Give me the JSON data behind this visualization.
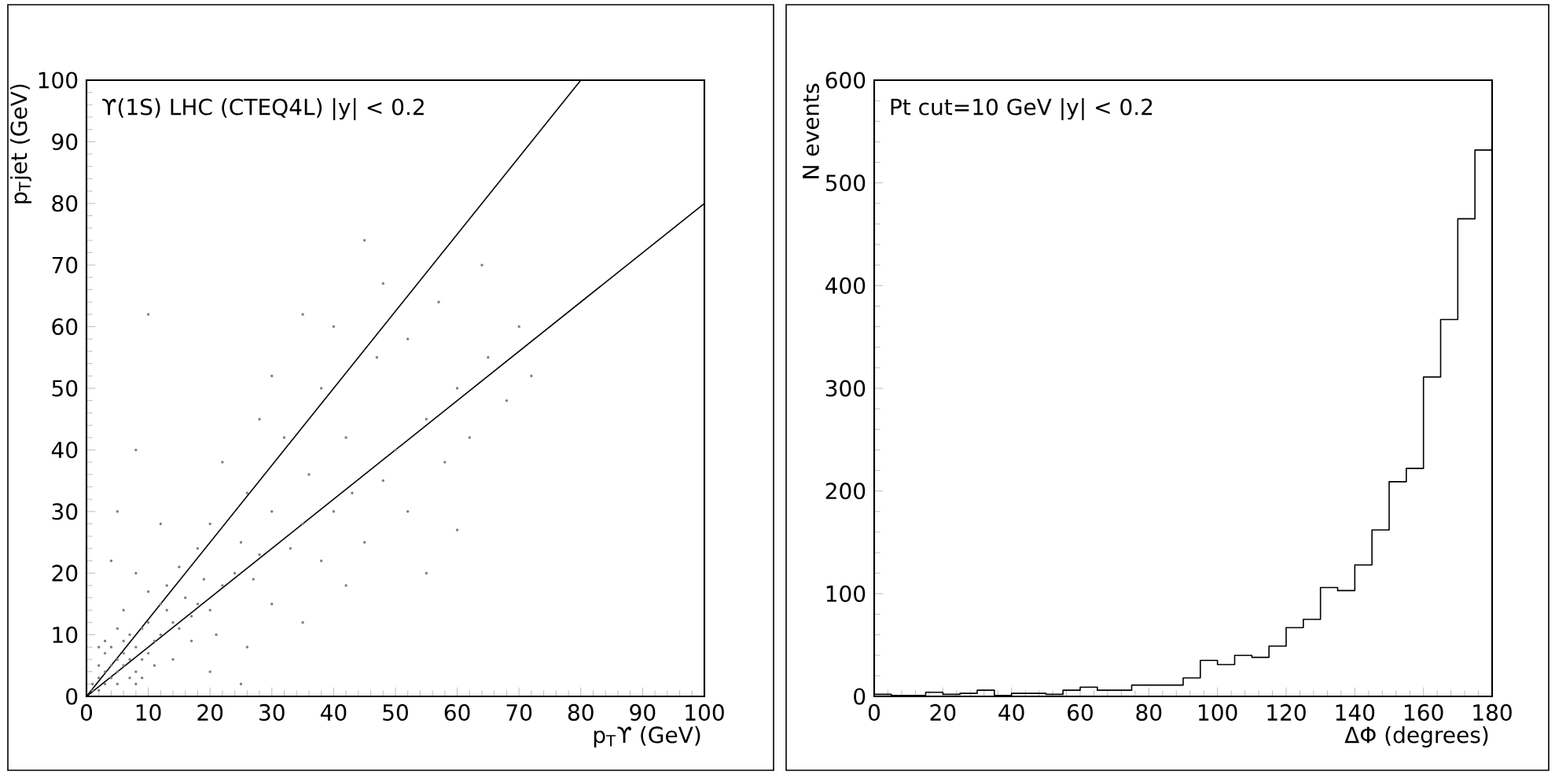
{
  "chart_data": [
    {
      "type": "scatter",
      "xlabel": "p$_{T}$ϒ (GeV)",
      "ylabel": "p$_{T}$jet (GeV)",
      "annotations": [
        "ϒ(1S) LHC (CTEQ4L) |y| < 0.2"
      ],
      "xlim": [
        0,
        100
      ],
      "ylim": [
        0,
        100
      ],
      "xticks": [
        0,
        10,
        20,
        30,
        40,
        50,
        60,
        70,
        80,
        90,
        100
      ],
      "yticks": [
        0,
        10,
        20,
        30,
        40,
        50,
        60,
        70,
        80,
        90,
        100
      ],
      "series": [
        {
          "type": "scatter",
          "color": "#808080",
          "marker": "circle",
          "x": [
            1,
            2,
            1,
            2,
            3,
            3,
            4,
            4,
            5,
            5,
            6,
            6,
            7,
            2,
            5,
            3,
            7,
            4,
            8,
            6,
            9,
            8,
            7,
            10,
            9,
            11,
            10,
            12,
            3,
            9,
            5,
            11,
            2,
            8,
            13,
            14,
            12,
            15,
            6,
            14,
            16,
            17,
            13,
            18,
            10,
            17,
            19,
            20,
            15,
            22,
            18,
            24,
            8,
            21,
            25,
            27,
            20,
            28,
            12,
            30,
            30,
            33,
            26,
            35,
            22,
            38,
            36,
            40,
            32,
            43,
            28,
            45,
            42,
            48,
            38,
            50,
            30,
            52,
            47,
            55,
            40,
            58,
            52,
            60,
            35,
            62,
            57,
            65,
            48,
            68,
            64,
            70,
            45,
            72,
            10,
            8,
            5,
            4,
            26,
            35,
            20,
            42,
            60,
            55,
            25
          ],
          "values": [
            1,
            1,
            2,
            3,
            2,
            4,
            3,
            5,
            4,
            6,
            5,
            7,
            6,
            5,
            2,
            7,
            3,
            8,
            4,
            9,
            6,
            8,
            10,
            7,
            11,
            9,
            12,
            10,
            9,
            3,
            11,
            5,
            8,
            2,
            14,
            12,
            15,
            11,
            14,
            6,
            16,
            13,
            18,
            15,
            17,
            9,
            19,
            14,
            21,
            18,
            24,
            20,
            20,
            10,
            25,
            19,
            28,
            23,
            28,
            15,
            30,
            24,
            33,
            28,
            38,
            22,
            36,
            30,
            42,
            33,
            45,
            25,
            42,
            35,
            50,
            40,
            52,
            30,
            55,
            45,
            60,
            38,
            58,
            50,
            62,
            42,
            64,
            55,
            67,
            48,
            70,
            60,
            74,
            52,
            62,
            40,
            30,
            22,
            8,
            12,
            4,
            18,
            27,
            20,
            2
          ]
        },
        {
          "type": "line",
          "color": "#000000",
          "x": [
            0,
            80
          ],
          "values": [
            0,
            100
          ]
        },
        {
          "type": "line",
          "color": "#000000",
          "x": [
            0,
            100
          ],
          "values": [
            0,
            80
          ]
        }
      ]
    },
    {
      "type": "histogram",
      "xlabel": "ΔΦ (degrees)",
      "ylabel": "N events",
      "annotations": [
        "Pt cut=10 GeV |y| < 0.2"
      ],
      "color": "#000000",
      "xlim": [
        0,
        180
      ],
      "ylim": [
        0,
        600
      ],
      "xticks": [
        0,
        20,
        40,
        60,
        80,
        100,
        120,
        140,
        160,
        180
      ],
      "yticks": [
        0,
        100,
        200,
        300,
        400,
        500,
        600
      ],
      "bins": [
        0,
        5,
        10,
        15,
        20,
        25,
        30,
        35,
        40,
        45,
        50,
        55,
        60,
        65,
        70,
        75,
        80,
        85,
        90,
        95,
        100,
        105,
        110,
        115,
        120,
        125,
        130,
        135,
        140,
        145,
        150,
        155,
        160,
        165,
        170,
        175,
        180
      ],
      "values": [
        2,
        1,
        1,
        4,
        2,
        3,
        6,
        1,
        3,
        3,
        2,
        6,
        9,
        6,
        6,
        11,
        11,
        11,
        18,
        35,
        31,
        40,
        38,
        49,
        67,
        75,
        106,
        103,
        128,
        162,
        209,
        222,
        311,
        367,
        465,
        532
      ]
    }
  ]
}
